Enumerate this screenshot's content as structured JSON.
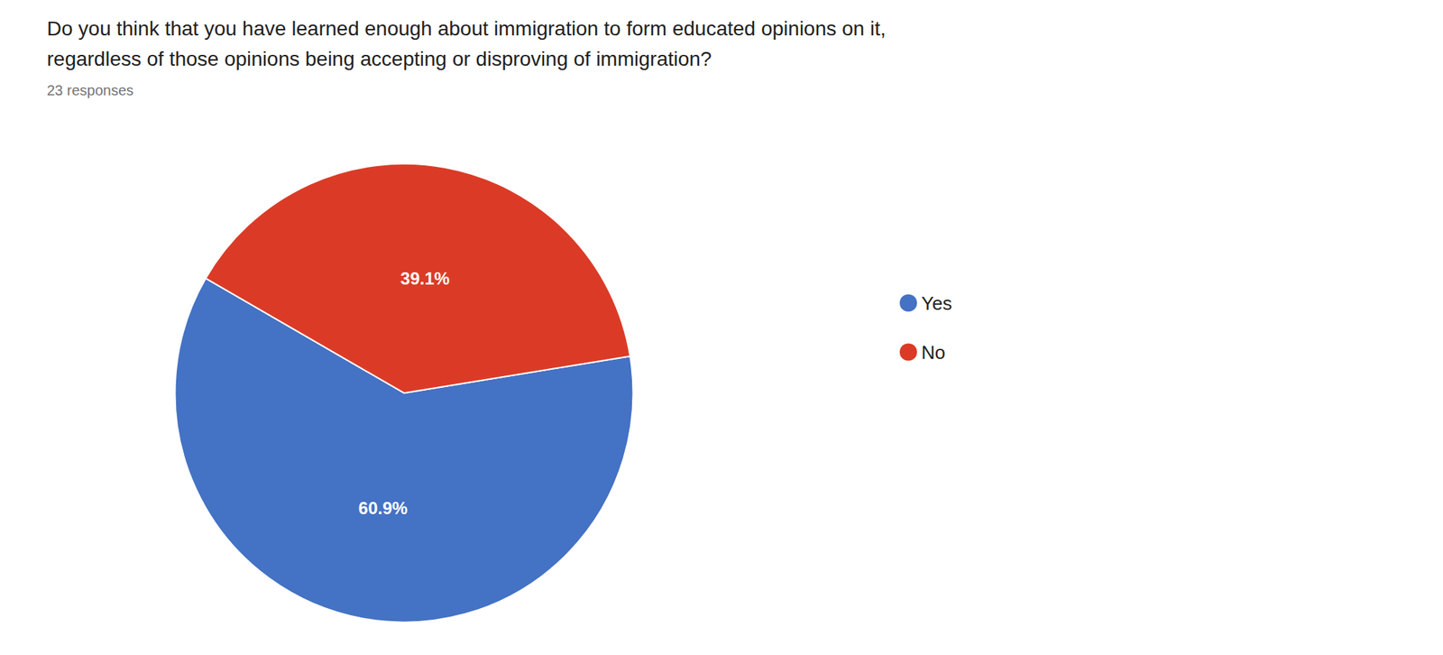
{
  "chart_data": {
    "type": "pie",
    "title": "Do you think that you have learned enough about immigration to form educated opinions on it,",
    "subtitle": "regardless of those opinions being accepting or disproving of immigration?",
    "annotations": [
      "23 responses"
    ],
    "categories": [
      "Yes",
      "No"
    ],
    "values": [
      60.9,
      39.1
    ],
    "value_labels": [
      "60.9%",
      "39.1%"
    ],
    "colors": [
      "#4472C4",
      "#DB3B26"
    ],
    "data_labels": true,
    "legend": "right"
  }
}
